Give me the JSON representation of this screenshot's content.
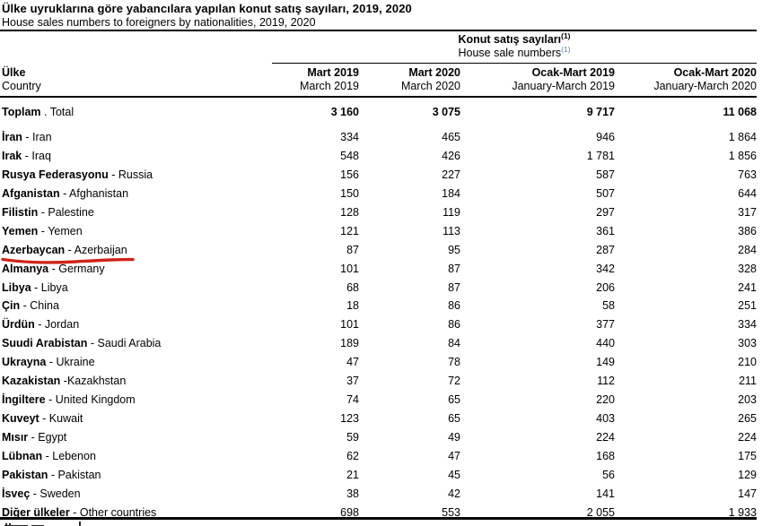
{
  "title": {
    "tr": "Ülke uyruklarına göre yabancılara yapılan konut satış sayıları, 2019, 2020",
    "en": "House sales numbers to foreigners by nationalities, 2019, 2020"
  },
  "spanner": {
    "tr": "Konut satış sayıları",
    "en": "House sale numbers",
    "footnote_marker": "(1)"
  },
  "columns": {
    "country": {
      "tr": "Ülke",
      "en": "Country"
    },
    "periods": [
      {
        "tr": "Mart 2019",
        "en": "March 2019"
      },
      {
        "tr": "Mart 2020",
        "en": "March 2020"
      },
      {
        "tr": "Ocak-Mart 2019",
        "en": "January-March 2019"
      },
      {
        "tr": "Ocak-Mart 2020",
        "en": "January-March 2020"
      }
    ]
  },
  "rows": [
    {
      "tr": "Toplam",
      "sep": " . ",
      "en": "Total",
      "bold": true,
      "underline": false,
      "values": [
        "3 160",
        "3 075",
        "9 717",
        "11 068"
      ]
    },
    {
      "tr": "İran",
      "sep": " - ",
      "en": "Iran",
      "bold": false,
      "underline": false,
      "values": [
        "334",
        "465",
        "946",
        "1 864"
      ]
    },
    {
      "tr": "Irak",
      "sep": " - ",
      "en": "Iraq",
      "bold": false,
      "underline": false,
      "values": [
        "548",
        "426",
        "1 781",
        "1 856"
      ]
    },
    {
      "tr": "Rusya Federasyonu",
      "sep": " - ",
      "en": "Russia",
      "bold": false,
      "underline": false,
      "values": [
        "156",
        "227",
        "587",
        "763"
      ]
    },
    {
      "tr": "Afganistan",
      "sep": " - ",
      "en": "Afghanistan",
      "bold": false,
      "underline": false,
      "values": [
        "150",
        "184",
        "507",
        "644"
      ]
    },
    {
      "tr": "Filistin",
      "sep": " - ",
      "en": "Palestine",
      "bold": false,
      "underline": false,
      "values": [
        "128",
        "119",
        "297",
        "317"
      ]
    },
    {
      "tr": "Yemen",
      "sep": " - ",
      "en": "Yemen",
      "bold": false,
      "underline": false,
      "values": [
        "121",
        "113",
        "361",
        "386"
      ]
    },
    {
      "tr": "Azerbaycan",
      "sep": " - ",
      "en": "Azerbaijan",
      "bold": false,
      "underline": true,
      "values": [
        "87",
        "95",
        "287",
        "284"
      ]
    },
    {
      "tr": "Almanya",
      "sep": " - ",
      "en": "Germany",
      "bold": false,
      "underline": false,
      "values": [
        "101",
        "87",
        "342",
        "328"
      ]
    },
    {
      "tr": "Libya",
      "sep": " - ",
      "en": "Libya",
      "bold": false,
      "underline": false,
      "values": [
        "68",
        "87",
        "206",
        "241"
      ]
    },
    {
      "tr": "Çin",
      "sep": " - ",
      "en": "China",
      "bold": false,
      "underline": false,
      "values": [
        "18",
        "86",
        "58",
        "251"
      ]
    },
    {
      "tr": "Ürdün",
      "sep": " - ",
      "en": "Jordan",
      "bold": false,
      "underline": false,
      "values": [
        "101",
        "86",
        "377",
        "334"
      ]
    },
    {
      "tr": "Suudi Arabistan",
      "sep": " - ",
      "en": "Saudi Arabia",
      "bold": false,
      "underline": false,
      "values": [
        "189",
        "84",
        "440",
        "303"
      ]
    },
    {
      "tr": "Ukrayna",
      "sep": " - ",
      "en": "Ukraine",
      "bold": false,
      "underline": false,
      "values": [
        "47",
        "78",
        "149",
        "210"
      ]
    },
    {
      "tr": "Kazakistan",
      "sep": " -",
      "en": "Kazakhstan",
      "bold": false,
      "underline": false,
      "values": [
        "37",
        "72",
        "112",
        "211"
      ]
    },
    {
      "tr": "İngiltere",
      "sep": " - ",
      "en": "United Kingdom",
      "bold": false,
      "underline": false,
      "values": [
        "74",
        "65",
        "220",
        "203"
      ]
    },
    {
      "tr": "Kuveyt",
      "sep": " - ",
      "en": "Kuwait",
      "bold": false,
      "underline": false,
      "values": [
        "123",
        "65",
        "403",
        "265"
      ]
    },
    {
      "tr": "Mısır",
      "sep": " - ",
      "en": "Egypt",
      "bold": false,
      "underline": false,
      "values": [
        "59",
        "49",
        "224",
        "224"
      ]
    },
    {
      "tr": "Lübnan",
      "sep": " - ",
      "en": "Lebenon",
      "bold": false,
      "underline": false,
      "values": [
        "62",
        "47",
        "168",
        "175"
      ]
    },
    {
      "tr": "Pakistan",
      "sep": " - ",
      "en": "Pakistan",
      "bold": false,
      "underline": false,
      "values": [
        "21",
        "45",
        "56",
        "129"
      ]
    },
    {
      "tr": "İsveç",
      "sep": " - ",
      "en": "Sweden",
      "bold": false,
      "underline": false,
      "values": [
        "38",
        "42",
        "141",
        "147"
      ]
    },
    {
      "tr": "Diğer ülkeler",
      "sep": " - ",
      "en": "Other countries",
      "bold": false,
      "underline": false,
      "values": [
        "698",
        "553",
        "2 055",
        "1 933"
      ]
    }
  ],
  "annotation": {
    "type": "hand-drawn-underline",
    "target": "Azerbaycan - Azerbaijan",
    "color": "#cf2318"
  },
  "colors": {
    "text": "#000000",
    "rule": "#000000",
    "en_footnote_marker": "#5e81ad",
    "annotation_red": "#cf2318"
  }
}
